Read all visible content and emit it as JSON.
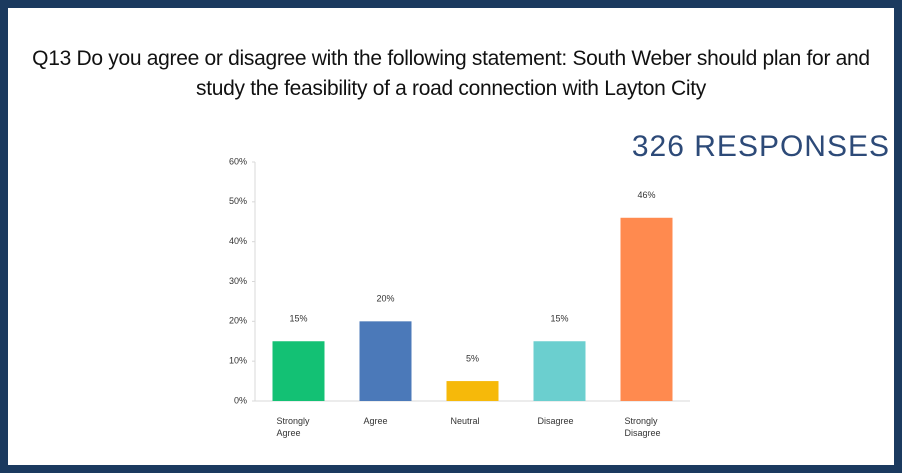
{
  "chart_data": {
    "type": "bar",
    "title": "Q13 Do you agree or disagree with the following statement: South Weber should plan for and study the feasibility of a road connection with Layton City",
    "annotation": "326 RESPONSES",
    "categories": [
      "Strongly Agree",
      "Agree",
      "Neutral",
      "Disagree",
      "Strongly Disagree"
    ],
    "values": [
      15,
      20,
      5,
      15,
      46
    ],
    "value_labels": [
      "15%",
      "20%",
      "5%",
      "15%",
      "46%"
    ],
    "colors": [
      "#13c174",
      "#4b79b9",
      "#f6b90a",
      "#6bcfcf",
      "#ff8a4f"
    ],
    "ylim": [
      0,
      60
    ],
    "yticks": [
      {
        "value": 0,
        "label": "0%"
      },
      {
        "value": 10,
        "label": "10%"
      },
      {
        "value": 20,
        "label": "20%"
      },
      {
        "value": 30,
        "label": "30%"
      },
      {
        "value": 40,
        "label": "40%"
      },
      {
        "value": 50,
        "label": "50%"
      },
      {
        "value": 60,
        "label": "60%"
      }
    ],
    "grid": false
  }
}
